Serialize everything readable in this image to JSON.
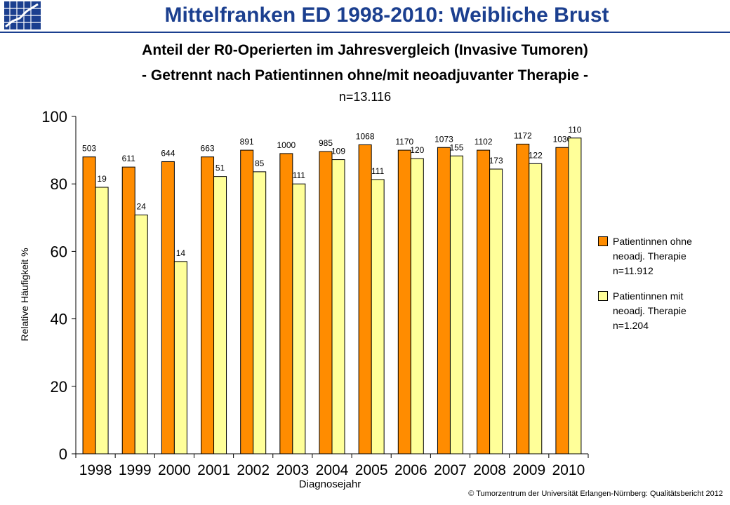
{
  "header": {
    "title": "Mittelfranken ED 1998-2010: Weibliche Brust"
  },
  "subtitle": {
    "line1": "Anteil der R0-Operierten im Jahresvergleich (Invasive Tumoren)",
    "line2": "- Getrennt nach Patientinnen ohne/mit neoadjuvanter Therapie -",
    "n_total": "n=13.116"
  },
  "legend": {
    "items": [
      {
        "lines": [
          "Patientinnen ohne",
          "neoadj. Therapie",
          "n=11.912"
        ]
      },
      {
        "lines": [
          "Patientinnen mit",
          "neoadj. Therapie",
          "n=1.204"
        ]
      }
    ]
  },
  "footer": {
    "copyright": "© Tumorzentrum  der Universität Erlangen-Nürnberg: Qualitätsbericht 2012"
  },
  "colors": {
    "series_ohne": "#ff8c00",
    "series_mit": "#ffff99",
    "title": "#1b3f8f"
  },
  "chart_data": {
    "type": "bar",
    "title": "",
    "xlabel": "Diagnosejahr",
    "ylabel": "Relative Häufigkeit %",
    "ylim": [
      0,
      100
    ],
    "yticks": [
      0,
      20,
      40,
      60,
      80,
      100
    ],
    "grid": false,
    "legend_position": "right",
    "categories": [
      "1998",
      "1999",
      "2000",
      "2001",
      "2002",
      "2003",
      "2004",
      "2005",
      "2006",
      "2007",
      "2008",
      "2009",
      "2010"
    ],
    "series": [
      {
        "name": "Patientinnen ohne neoadj. Therapie n=11.912",
        "values": [
          88,
          85,
          86.6,
          88,
          90,
          89,
          89.6,
          91.6,
          90,
          90.8,
          90,
          91.8,
          90.8
        ],
        "labels": [
          "503",
          "611",
          "644",
          "663",
          "891",
          "1000",
          "985",
          "1068",
          "1170",
          "1073",
          "1102",
          "1172",
          "1030"
        ]
      },
      {
        "name": "Patientinnen mit neoadj. Therapie n=1.204",
        "values": [
          79,
          70.8,
          57,
          82.2,
          83.6,
          80,
          87.2,
          81.3,
          87.5,
          88.3,
          84.4,
          86,
          93.6
        ],
        "labels": [
          "19",
          "24",
          "14",
          "51",
          "85",
          "111",
          "109",
          "111",
          "120",
          "155",
          "173",
          "122",
          "110"
        ]
      }
    ]
  }
}
